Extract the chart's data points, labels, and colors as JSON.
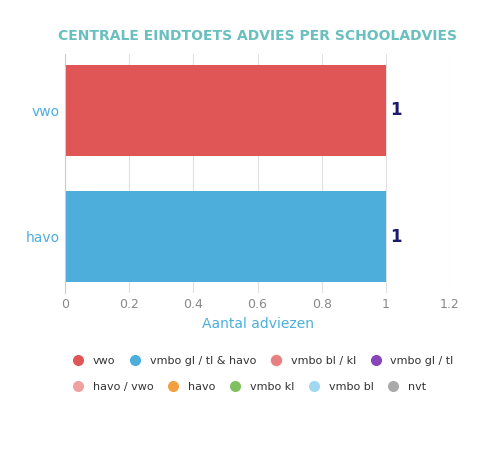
{
  "title": "CENTRALE EINDTOETS ADVIES PER SCHOOLADVIES",
  "xlabel": "Aantal adviezen",
  "categories": [
    "vwo",
    "havo"
  ],
  "bar_colors": [
    "#e05555",
    "#4daedc"
  ],
  "values": [
    1,
    1
  ],
  "xlim": [
    0,
    1.2
  ],
  "xticks": [
    0,
    0.2,
    0.4,
    0.6,
    0.8,
    1.0,
    1.2
  ],
  "bar_label_color": "#1a1a6e",
  "ylabel_color": "#4daedc",
  "xlabel_color": "#4daedc",
  "title_color": "#6abfbf",
  "background_color": "#ffffff",
  "grid_color": "#e0e0e0",
  "legend_items": [
    {
      "label": "vwo",
      "color": "#e05555"
    },
    {
      "label": "vmbo gl / tl & havo",
      "color": "#4daedc"
    },
    {
      "label": "vmbo bl / kl",
      "color": "#e05555",
      "marker_alpha": 0.75
    },
    {
      "label": "vmbo gl / tl",
      "color": "#8844bb"
    },
    {
      "label": "havo / vwo",
      "color": "#f0a0a0"
    },
    {
      "label": "havo",
      "color": "#f0a040"
    },
    {
      "label": "vmbo kl",
      "color": "#80c060"
    },
    {
      "label": "vmbo bl",
      "color": "#a0d8f0"
    },
    {
      "label": "nvt",
      "color": "#aaaaaa"
    }
  ]
}
